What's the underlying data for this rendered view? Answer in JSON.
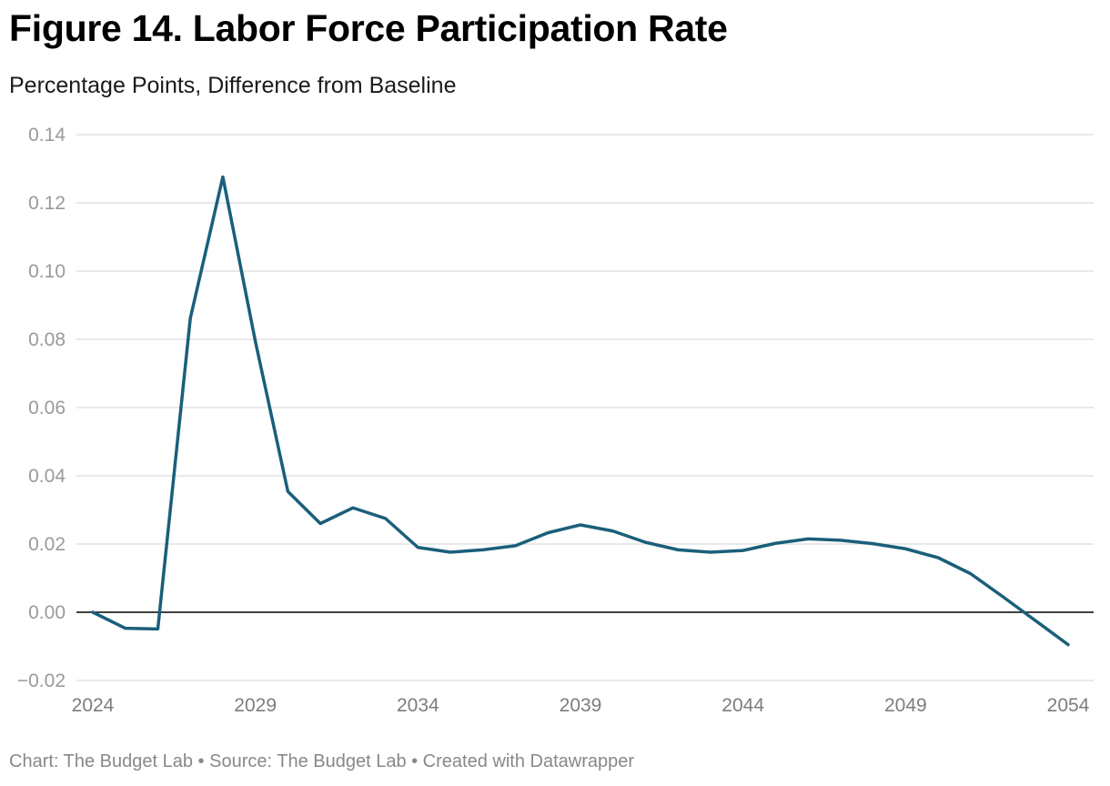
{
  "header": {
    "title": "Figure 14. Labor Force Participation Rate",
    "subtitle": "Percentage Points, Difference from Baseline"
  },
  "footer": {
    "credit": "Chart: The Budget Lab • Source: The Budget Lab • Created with Datawrapper"
  },
  "colors": {
    "line": "#1a5f7a",
    "grid": "#e2e2e2",
    "zero_line": "#000000",
    "tick_text": "#9a9a9a"
  },
  "chart_data": {
    "type": "line",
    "title": "Figure 14. Labor Force Participation Rate",
    "ylabel": "Percentage Points, Difference from Baseline",
    "xlabel": "",
    "x": [
      2024,
      2025,
      2026,
      2027,
      2028,
      2029,
      2030,
      2031,
      2032,
      2033,
      2034,
      2035,
      2036,
      2037,
      2038,
      2039,
      2040,
      2041,
      2042,
      2043,
      2044,
      2045,
      2046,
      2047,
      2048,
      2049,
      2050,
      2051,
      2052,
      2053,
      2054
    ],
    "series": [
      {
        "name": "Labor Force Participation Rate",
        "values": [
          0.0,
          -0.0047,
          -0.0049,
          0.0862,
          0.1276,
          0.0794,
          0.0354,
          0.026,
          0.0306,
          0.0275,
          0.019,
          0.0176,
          0.0183,
          0.0195,
          0.0233,
          0.0256,
          0.0238,
          0.0205,
          0.0183,
          0.0176,
          0.0181,
          0.0202,
          0.0215,
          0.0211,
          0.0201,
          0.0186,
          0.016,
          0.0113,
          0.0045,
          -0.0025,
          -0.0095
        ]
      }
    ],
    "xlim": [
      2024,
      2054
    ],
    "ylim": [
      -0.02,
      0.14
    ],
    "x_ticks": [
      2024,
      2029,
      2034,
      2039,
      2044,
      2049,
      2054
    ],
    "y_ticks": [
      -0.02,
      0.0,
      0.02,
      0.04,
      0.06,
      0.08,
      0.1,
      0.12,
      0.14
    ],
    "y_tick_labels": [
      "−0.02",
      "0.00",
      "0.02",
      "0.04",
      "0.06",
      "0.08",
      "0.10",
      "0.12",
      "0.14"
    ],
    "grid": true,
    "legend": "none"
  }
}
